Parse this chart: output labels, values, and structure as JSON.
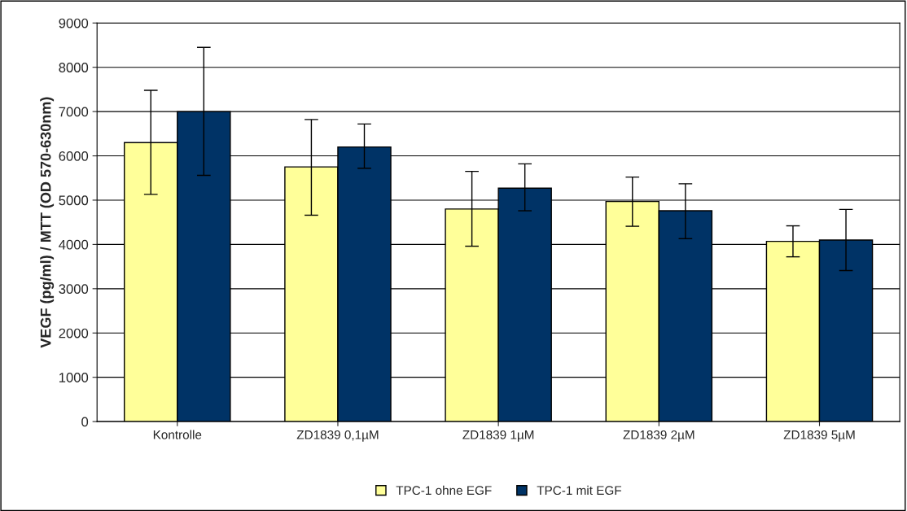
{
  "chart_data": {
    "type": "bar",
    "ylabel": "VEGF (pg/ml) / MTT (OD 570-630nm)",
    "categories": [
      "Kontrolle",
      "ZD1839 0,1µM",
      "ZD1839 1µM",
      "ZD1839 2µM",
      "ZD1839 5µM"
    ],
    "series": [
      {
        "name": "TPC-1 ohne EGF",
        "color": "#ffff99",
        "values": [
          6300,
          5750,
          4800,
          4970,
          4070
        ],
        "errors": [
          [
            5130,
            7480
          ],
          [
            4660,
            6820
          ],
          [
            3960,
            5650
          ],
          [
            4410,
            5520
          ],
          [
            3720,
            4420
          ]
        ]
      },
      {
        "name": "TPC-1 mit EGF",
        "color": "#003366",
        "values": [
          7000,
          6200,
          5270,
          4760,
          4100
        ],
        "errors": [
          [
            5560,
            8450
          ],
          [
            5720,
            6720
          ],
          [
            4760,
            5820
          ],
          [
            4130,
            5370
          ],
          [
            3410,
            4790
          ]
        ]
      }
    ],
    "ylim": [
      0,
      9000
    ],
    "yticks": [
      0,
      1000,
      2000,
      3000,
      4000,
      5000,
      6000,
      7000,
      8000,
      9000
    ],
    "grid": "y",
    "legend": "bottom"
  }
}
